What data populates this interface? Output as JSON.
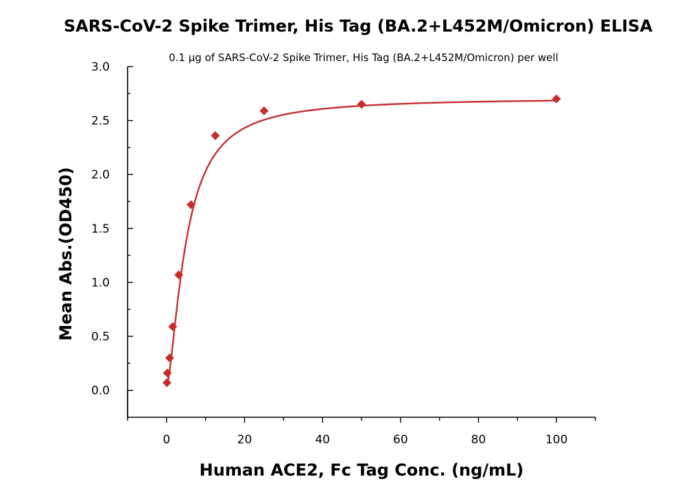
{
  "chart_data": {
    "type": "scatter",
    "title": "SARS-CoV-2 Spike Trimer, His Tag (BA.2+L452M/Omicron) ELISA",
    "subtitle": "0.1 μg of SARS-CoV-2 Spike Trimer, His Tag (BA.2+L452M/Omicron) per well",
    "xlabel": "Human ACE2, Fc Tag Conc. (ng/mL)",
    "ylabel": "Mean Abs.(OD450)",
    "xlim": [
      -10,
      110
    ],
    "ylim": [
      -0.25,
      3.0
    ],
    "x_ticks": [
      0,
      20,
      40,
      60,
      80,
      100
    ],
    "x_tick_labels": [
      "0",
      "20",
      "40",
      "60",
      "80",
      "100"
    ],
    "y_ticks": [
      0.0,
      0.5,
      1.0,
      1.5,
      2.0,
      2.5,
      3.0
    ],
    "y_tick_labels": [
      "0.0",
      "0.5",
      "1.0",
      "1.5",
      "2.0",
      "2.5",
      "3.0"
    ],
    "grid": false,
    "series": [
      {
        "marker": "diamond",
        "color": "#c62d2d",
        "x": [
          0.0977,
          0.195,
          0.781,
          1.563,
          3.125,
          6.25,
          12.5,
          25,
          50,
          100
        ],
        "y": [
          0.07,
          0.16,
          0.3,
          0.59,
          1.07,
          1.72,
          2.36,
          2.59,
          2.65,
          2.7
        ],
        "fit": {
          "type": "4PL",
          "bottom": 0.04,
          "top": 2.71,
          "ec50": 5.0,
          "hill": 1.55,
          "color": "#c62d2d"
        }
      }
    ]
  }
}
